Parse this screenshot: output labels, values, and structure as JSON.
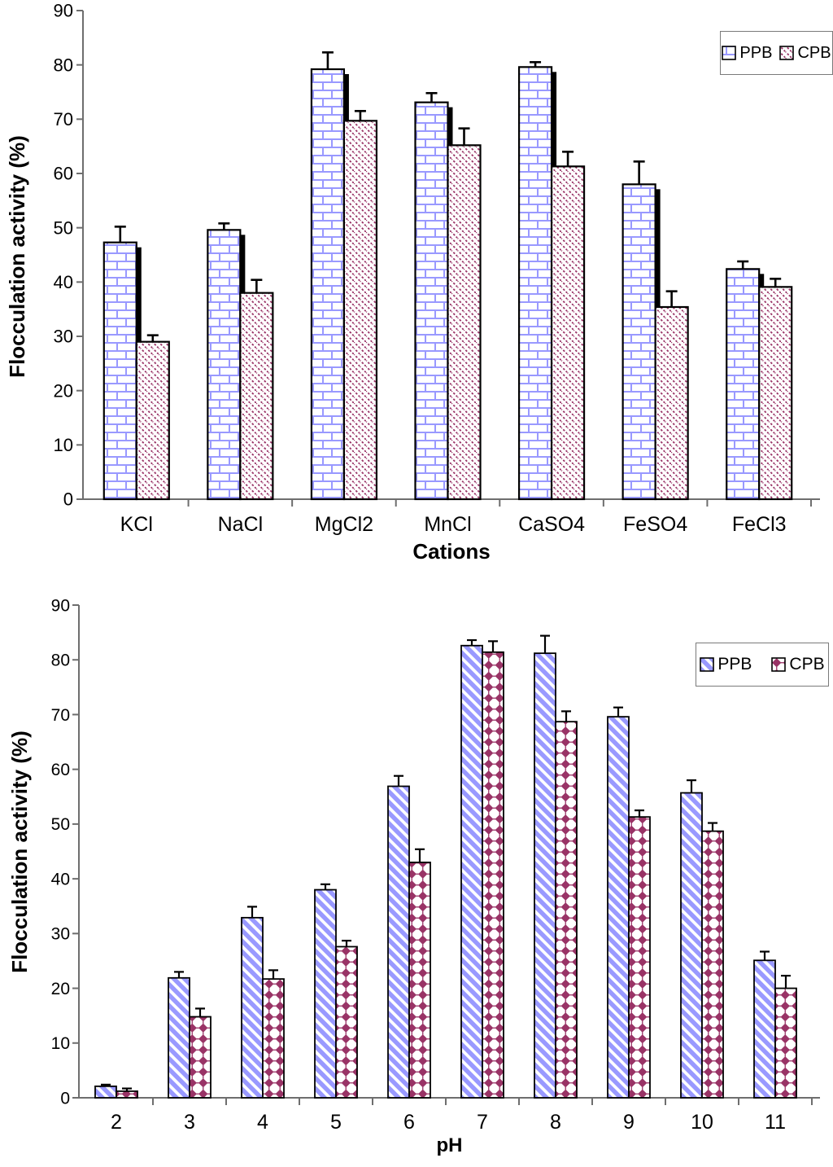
{
  "page": {
    "background": "#ffffff"
  },
  "chart_data": [
    {
      "type": "bar",
      "title": "",
      "xlabel": "Cations",
      "ylabel": "Flocculation activity (%)",
      "ylim": [
        0,
        90
      ],
      "ytick_step": 10,
      "grid": false,
      "legend_position": "top-right",
      "categories": [
        "KCl",
        "NaCl",
        "MgCl2",
        "MnCl",
        "CaSO4",
        "FeSO4",
        "FeCl3"
      ],
      "series": [
        {
          "name": "PPB",
          "pattern": "brick",
          "pattern_color": "#9999FF",
          "values": [
            47.3,
            49.6,
            79.2,
            73.1,
            79.6,
            58.0,
            42.4
          ],
          "errors": [
            2.9,
            1.2,
            3.1,
            1.7,
            0.9,
            4.2,
            1.4
          ]
        },
        {
          "name": "CPB",
          "pattern": "dash",
          "pattern_color": "#993366",
          "values": [
            29.0,
            38.0,
            69.7,
            65.2,
            61.3,
            35.4,
            39.1
          ],
          "errors": [
            1.2,
            2.4,
            1.8,
            3.1,
            2.7,
            2.9,
            1.5
          ]
        }
      ]
    },
    {
      "type": "bar",
      "title": "",
      "xlabel": "pH",
      "ylabel": "Flocculation activity (%)",
      "ylim": [
        0,
        90
      ],
      "ytick_step": 10,
      "grid": false,
      "legend_position": "top-right",
      "categories": [
        "2",
        "3",
        "4",
        "5",
        "6",
        "7",
        "8",
        "9",
        "10",
        "11"
      ],
      "series": [
        {
          "name": "PPB",
          "pattern": "stripe",
          "pattern_color": "#9999FF",
          "values": [
            2.1,
            21.9,
            32.9,
            38.0,
            56.9,
            82.6,
            81.2,
            69.6,
            55.7,
            25.1
          ],
          "errors": [
            0.3,
            1.1,
            2.0,
            1.0,
            1.9,
            1.0,
            3.2,
            1.7,
            2.3,
            1.6
          ]
        },
        {
          "name": "CPB",
          "pattern": "diamond",
          "pattern_color": "#993366",
          "values": [
            1.2,
            14.8,
            21.7,
            27.6,
            43.0,
            81.4,
            68.7,
            51.3,
            48.7,
            20.0
          ],
          "errors": [
            0.5,
            1.5,
            1.6,
            1.1,
            2.4,
            2.0,
            1.9,
            1.2,
            1.5,
            2.3
          ]
        }
      ]
    }
  ],
  "colors": {
    "ppb_pattern": "#9999FF",
    "cpb_pattern": "#993366",
    "bar_outline": "#000000",
    "error_bar": "#000000",
    "axis": "#6e6e6e",
    "text": "#000000"
  }
}
